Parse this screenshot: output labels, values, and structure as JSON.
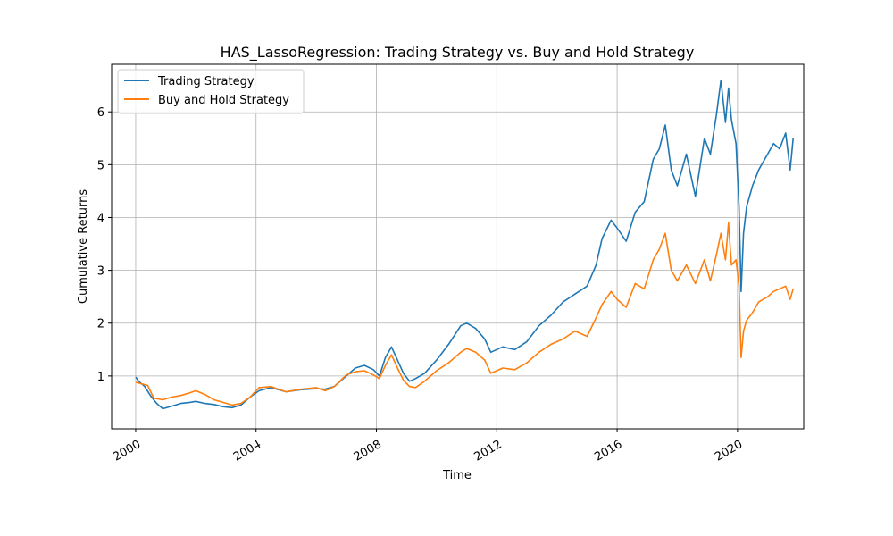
{
  "chart_data": {
    "type": "line",
    "title": "HAS_LassoRegression: Trading Strategy vs. Buy and Hold Strategy",
    "xlabel": "Time",
    "ylabel": "Cumulative Returns",
    "xlim": [
      1999.2,
      2022.2
    ],
    "ylim": [
      0.0,
      6.9
    ],
    "x_ticks": [
      2000,
      2004,
      2008,
      2012,
      2016,
      2020
    ],
    "x_tick_labels": [
      "2000",
      "2004",
      "2008",
      "2012",
      "2016",
      "2020"
    ],
    "y_ticks": [
      1,
      2,
      3,
      4,
      5,
      6
    ],
    "y_tick_labels": [
      "1",
      "2",
      "3",
      "4",
      "5",
      "6"
    ],
    "grid": true,
    "legend_placement": "upper-left",
    "series": [
      {
        "name": "Trading Strategy",
        "color": "#1f77b4",
        "x": [
          2000.0,
          2000.1,
          2000.3,
          2000.5,
          2000.7,
          2000.9,
          2001.2,
          2001.5,
          2001.8,
          2002.0,
          2002.3,
          2002.6,
          2002.9,
          2003.2,
          2003.5,
          2003.8,
          2004.1,
          2004.5,
          2005.0,
          2005.5,
          2006.0,
          2006.3,
          2006.6,
          2007.0,
          2007.3,
          2007.6,
          2007.9,
          2008.1,
          2008.3,
          2008.5,
          2008.7,
          2008.9,
          2009.1,
          2009.3,
          2009.6,
          2010.0,
          2010.4,
          2010.8,
          2011.0,
          2011.3,
          2011.6,
          2011.8,
          2012.2,
          2012.6,
          2013.0,
          2013.4,
          2013.8,
          2014.2,
          2014.6,
          2015.0,
          2015.3,
          2015.5,
          2015.8,
          2016.0,
          2016.3,
          2016.6,
          2016.9,
          2017.2,
          2017.4,
          2017.6,
          2017.8,
          2018.0,
          2018.3,
          2018.6,
          2018.9,
          2019.1,
          2019.3,
          2019.45,
          2019.6,
          2019.7,
          2019.8,
          2019.95,
          2020.05,
          2020.12,
          2020.2,
          2020.3,
          2020.5,
          2020.7,
          2021.0,
          2021.2,
          2021.4,
          2021.6,
          2021.75,
          2021.85
        ],
        "y": [
          0.98,
          0.9,
          0.8,
          0.62,
          0.48,
          0.38,
          0.43,
          0.48,
          0.5,
          0.52,
          0.48,
          0.46,
          0.42,
          0.4,
          0.45,
          0.6,
          0.72,
          0.78,
          0.7,
          0.74,
          0.76,
          0.75,
          0.8,
          1.0,
          1.15,
          1.2,
          1.12,
          1.0,
          1.35,
          1.55,
          1.3,
          1.05,
          0.9,
          0.95,
          1.05,
          1.3,
          1.6,
          1.95,
          2.0,
          1.9,
          1.7,
          1.45,
          1.55,
          1.5,
          1.65,
          1.95,
          2.15,
          2.4,
          2.55,
          2.7,
          3.1,
          3.6,
          3.95,
          3.8,
          3.55,
          4.1,
          4.3,
          5.1,
          5.3,
          5.75,
          4.9,
          4.6,
          5.2,
          4.4,
          5.5,
          5.2,
          5.95,
          6.6,
          5.8,
          6.45,
          5.85,
          5.4,
          4.2,
          2.6,
          3.7,
          4.2,
          4.6,
          4.9,
          5.2,
          5.4,
          5.3,
          5.6,
          4.9,
          5.5
        ]
      },
      {
        "name": "Buy and Hold Strategy",
        "color": "#ff7f0e",
        "x": [
          2000.0,
          2000.2,
          2000.4,
          2000.6,
          2000.9,
          2001.2,
          2001.5,
          2001.8,
          2002.0,
          2002.3,
          2002.6,
          2002.9,
          2003.2,
          2003.5,
          2003.8,
          2004.1,
          2004.5,
          2005.0,
          2005.5,
          2006.0,
          2006.3,
          2006.6,
          2007.0,
          2007.3,
          2007.6,
          2007.9,
          2008.1,
          2008.3,
          2008.5,
          2008.7,
          2008.9,
          2009.1,
          2009.3,
          2009.6,
          2010.0,
          2010.4,
          2010.8,
          2011.0,
          2011.3,
          2011.6,
          2011.8,
          2012.2,
          2012.6,
          2013.0,
          2013.4,
          2013.8,
          2014.2,
          2014.6,
          2015.0,
          2015.3,
          2015.5,
          2015.8,
          2016.0,
          2016.3,
          2016.6,
          2016.9,
          2017.2,
          2017.4,
          2017.6,
          2017.8,
          2018.0,
          2018.3,
          2018.6,
          2018.9,
          2019.1,
          2019.3,
          2019.45,
          2019.6,
          2019.7,
          2019.8,
          2019.95,
          2020.05,
          2020.12,
          2020.2,
          2020.3,
          2020.5,
          2020.7,
          2021.0,
          2021.2,
          2021.4,
          2021.6,
          2021.75,
          2021.85
        ],
        "y": [
          0.88,
          0.85,
          0.82,
          0.58,
          0.55,
          0.6,
          0.63,
          0.68,
          0.72,
          0.65,
          0.55,
          0.5,
          0.45,
          0.48,
          0.6,
          0.78,
          0.8,
          0.7,
          0.75,
          0.78,
          0.72,
          0.8,
          1.02,
          1.08,
          1.1,
          1.02,
          0.95,
          1.2,
          1.4,
          1.15,
          0.92,
          0.8,
          0.78,
          0.9,
          1.1,
          1.25,
          1.45,
          1.52,
          1.45,
          1.3,
          1.05,
          1.15,
          1.12,
          1.25,
          1.45,
          1.6,
          1.7,
          1.85,
          1.75,
          2.1,
          2.35,
          2.6,
          2.45,
          2.3,
          2.75,
          2.65,
          3.2,
          3.4,
          3.7,
          3.0,
          2.8,
          3.1,
          2.75,
          3.2,
          2.8,
          3.3,
          3.7,
          3.2,
          3.9,
          3.1,
          3.2,
          2.7,
          1.35,
          1.85,
          2.05,
          2.2,
          2.4,
          2.5,
          2.6,
          2.65,
          2.7,
          2.45,
          2.65
        ]
      }
    ]
  }
}
